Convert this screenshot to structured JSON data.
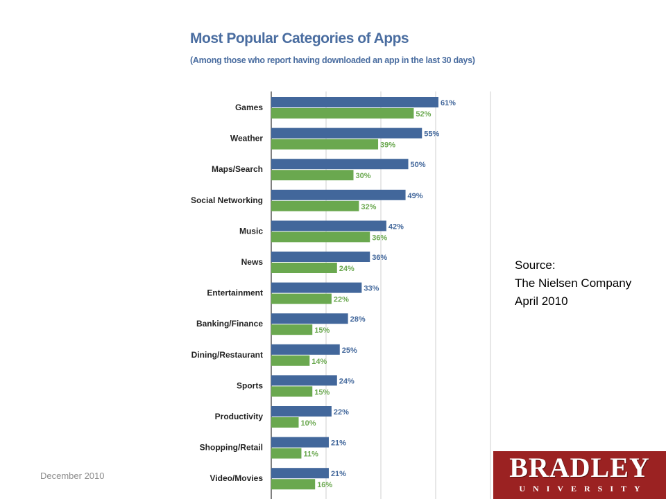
{
  "chart_data": {
    "type": "bar",
    "orientation": "horizontal",
    "title": "Most Popular Categories of Apps",
    "subtitle": "(Among those who report having downloaded an app in the last 30 days)",
    "categories": [
      "Games",
      "Weather",
      "Maps/Search",
      "Social Networking",
      "Music",
      "News",
      "Entertainment",
      "Banking/Finance",
      "Dining/Restaurant",
      "Sports",
      "Productivity",
      "Shopping/Retail",
      "Video/Movies"
    ],
    "series": [
      {
        "values": [
          61,
          55,
          50,
          49,
          42,
          36,
          33,
          28,
          25,
          24,
          22,
          21,
          21
        ]
      },
      {
        "values": [
          52,
          39,
          30,
          32,
          36,
          24,
          22,
          15,
          14,
          15,
          10,
          11,
          16
        ]
      }
    ],
    "data_labels": [
      [
        "61%",
        "55%",
        "50%",
        "49%",
        "42%",
        "36%",
        "33%",
        "28%",
        "25%",
        "24%",
        "22%",
        "21%",
        "21%"
      ],
      [
        "52%",
        "39%",
        "30%",
        "32%",
        "36%",
        "24%",
        "22%",
        "15%",
        "14%",
        "15%",
        "10%",
        "11%",
        "16%"
      ]
    ],
    "xlim": [
      0,
      80
    ],
    "grid": true,
    "colors": [
      "#42679b",
      "#6aa84f"
    ]
  },
  "source": {
    "line1": "Source:",
    "line2": "The Nielsen Company",
    "line3": "April 2010"
  },
  "footer": {
    "date": "December 2010"
  },
  "logo": {
    "word": "BRADLEY",
    "sub": "UNIVERSITY",
    "bg_color": "#9b2222"
  }
}
